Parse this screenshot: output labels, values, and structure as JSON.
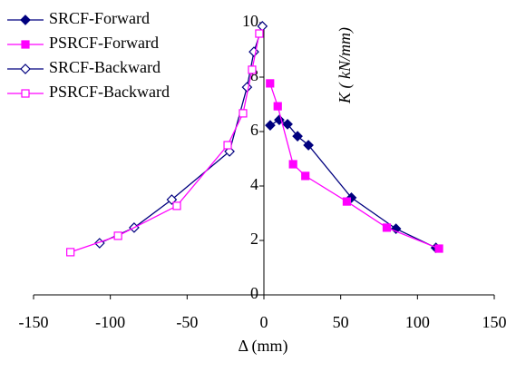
{
  "chart_data": {
    "type": "line",
    "x_label": "Δ (mm)",
    "y_label": "K ( kN/mm)",
    "xlim": [
      -150,
      150
    ],
    "xticks": [
      -150,
      -100,
      -50,
      0,
      50,
      100,
      150
    ],
    "ylim": [
      0,
      10
    ],
    "yticks": [
      0,
      2,
      4,
      6,
      8,
      10
    ],
    "legend": "upper left",
    "series": [
      {
        "name": "SRCF-Forward",
        "color": "#00007f",
        "marker": "diamond",
        "filled": true,
        "x": [
          4.1,
          10,
          15.4,
          21.9,
          29,
          57,
          86,
          112
        ],
        "values": [
          6.23,
          6.43,
          6.27,
          5.83,
          5.5,
          3.57,
          2.43,
          1.73
        ]
      },
      {
        "name": "PSRCF-Forward",
        "color": "#ff00ff",
        "marker": "square",
        "filled": true,
        "x": [
          4,
          9,
          19,
          27,
          54,
          80,
          114
        ],
        "values": [
          7.77,
          6.93,
          4.8,
          4.37,
          3.43,
          2.47,
          1.7
        ]
      },
      {
        "name": "SRCF-Backward",
        "color": "#00007f",
        "marker": "diamond",
        "filled": false,
        "x": [
          -1,
          -6.5,
          -11,
          -22.4,
          -60,
          -84.5,
          -107
        ],
        "values": [
          9.87,
          8.93,
          7.63,
          5.27,
          3.5,
          2.47,
          1.9
        ]
      },
      {
        "name": "PSRCF-Backward",
        "color": "#ff00ff",
        "marker": "square",
        "filled": false,
        "x": [
          -3,
          -7.7,
          -13.6,
          -23.6,
          -56.7,
          -95,
          -126
        ],
        "values": [
          9.6,
          8.27,
          6.67,
          5.5,
          3.27,
          2.17,
          1.57
        ]
      }
    ]
  }
}
